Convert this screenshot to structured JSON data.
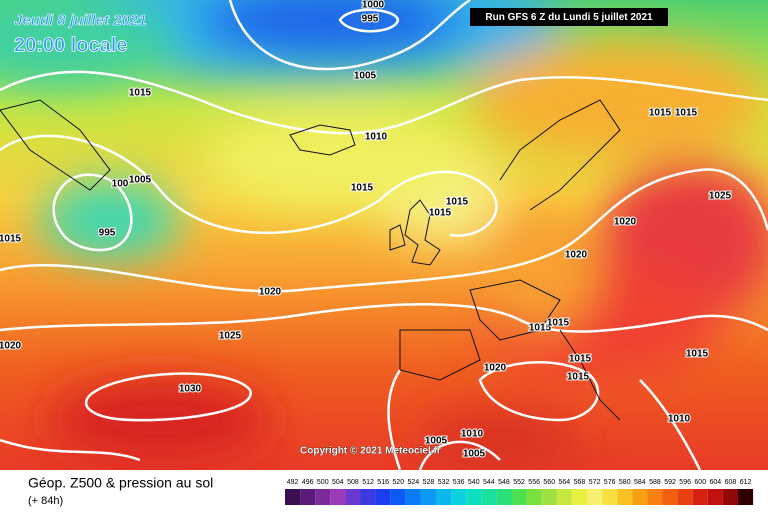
{
  "header": {
    "date": "Jeudi 8 juillet 2021",
    "time": "20:00 locale",
    "run": "Run GFS 6 Z du Lundi 5 juillet 2021"
  },
  "copyright": "Copyright © 2021 Meteociel.fr",
  "footer": {
    "title": "Géop. Z500 & pression au sol",
    "subtitle": "(+ 84h)"
  },
  "isobar_labels": [
    "1000",
    "995",
    "1005",
    "1015",
    "1010",
    "1015",
    "1015",
    "1015",
    "1005",
    "100",
    "995",
    "1015",
    "1015",
    "1015",
    "1025",
    "1020",
    "1020",
    "1020",
    "1025",
    "1020",
    "1030",
    "1015",
    "1015",
    "1015",
    "1015",
    "1015",
    "1020",
    "1010",
    "1010",
    "1005",
    "1005"
  ],
  "scale": {
    "values": [
      492,
      496,
      500,
      504,
      508,
      512,
      516,
      520,
      524,
      528,
      532,
      536,
      540,
      544,
      548,
      552,
      556,
      560,
      564,
      568,
      572,
      576,
      580,
      584,
      588,
      592,
      596,
      600,
      604,
      608,
      612
    ],
    "colors": [
      "#3c1050",
      "#5a1a7a",
      "#7a2a9a",
      "#9a3ab8",
      "#6a3ad0",
      "#3a3ae0",
      "#1a3ef0",
      "#0a5af5",
      "#0a7af5",
      "#0a9af5",
      "#0ab8f0",
      "#0ad0e0",
      "#0ae0c0",
      "#1ae0a0",
      "#2ae07a",
      "#4ae050",
      "#7ae040",
      "#a0e040",
      "#c8e840",
      "#e8f040",
      "#f8f070",
      "#f8e040",
      "#f8c020",
      "#f8a010",
      "#f88010",
      "#f06010",
      "#e84010",
      "#d82010",
      "#c01010",
      "#900808",
      "#300000"
    ]
  }
}
